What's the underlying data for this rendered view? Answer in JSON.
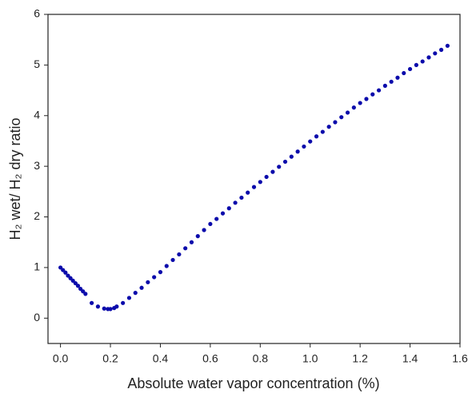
{
  "chart_data": {
    "type": "scatter",
    "xlabel": "Absolute water vapor concentration (%)",
    "ylabel": "H₂ wet/ H₂ dry ratio",
    "color": "#0b0bab",
    "xlim": [
      -0.05,
      1.6
    ],
    "ylim": [
      -0.5,
      6
    ],
    "xticks": [
      {
        "value": 0,
        "label": "0.0"
      },
      {
        "value": 0.2,
        "label": "0.2"
      },
      {
        "value": 0.4,
        "label": "0.4"
      },
      {
        "value": 0.6,
        "label": "0.6"
      },
      {
        "value": 0.8,
        "label": "0.8"
      },
      {
        "value": 1,
        "label": "1.0"
      },
      {
        "value": 1.2,
        "label": "1.2"
      },
      {
        "value": 1.4,
        "label": "1.4"
      },
      {
        "value": 1.6,
        "label": "1.6"
      }
    ],
    "yticks": [
      0,
      1,
      2,
      3,
      4,
      5,
      6
    ],
    "x": [
      0,
      0.01,
      0.02,
      0.03,
      0.04,
      0.05,
      0.06,
      0.07,
      0.08,
      0.09,
      0.1,
      0.125,
      0.15,
      0.175,
      0.19,
      0.2,
      0.215,
      0.225,
      0.25,
      0.275,
      0.3,
      0.325,
      0.35,
      0.375,
      0.4,
      0.425,
      0.45,
      0.475,
      0.5,
      0.525,
      0.55,
      0.575,
      0.6,
      0.625,
      0.65,
      0.675,
      0.7,
      0.725,
      0.75,
      0.775,
      0.8,
      0.825,
      0.85,
      0.875,
      0.9,
      0.925,
      0.95,
      0.975,
      1.0,
      1.025,
      1.05,
      1.075,
      1.1,
      1.125,
      1.15,
      1.175,
      1.2,
      1.225,
      1.25,
      1.275,
      1.3,
      1.325,
      1.35,
      1.375,
      1.4,
      1.425,
      1.45,
      1.475,
      1.5,
      1.525,
      1.55
    ],
    "values": [
      1.0,
      0.95,
      0.9,
      0.84,
      0.79,
      0.74,
      0.69,
      0.64,
      0.58,
      0.53,
      0.48,
      0.3,
      0.23,
      0.19,
      0.18,
      0.18,
      0.2,
      0.23,
      0.3,
      0.4,
      0.5,
      0.6,
      0.71,
      0.81,
      0.91,
      1.03,
      1.15,
      1.26,
      1.38,
      1.5,
      1.62,
      1.74,
      1.86,
      1.96,
      2.07,
      2.17,
      2.28,
      2.38,
      2.48,
      2.59,
      2.69,
      2.79,
      2.89,
      2.99,
      3.09,
      3.19,
      3.29,
      3.39,
      3.49,
      3.59,
      3.68,
      3.78,
      3.87,
      3.97,
      4.06,
      4.16,
      4.25,
      4.33,
      4.42,
      4.5,
      4.59,
      4.67,
      4.75,
      4.84,
      4.92,
      5.0,
      5.07,
      5.15,
      5.23,
      5.3,
      5.38
    ]
  }
}
